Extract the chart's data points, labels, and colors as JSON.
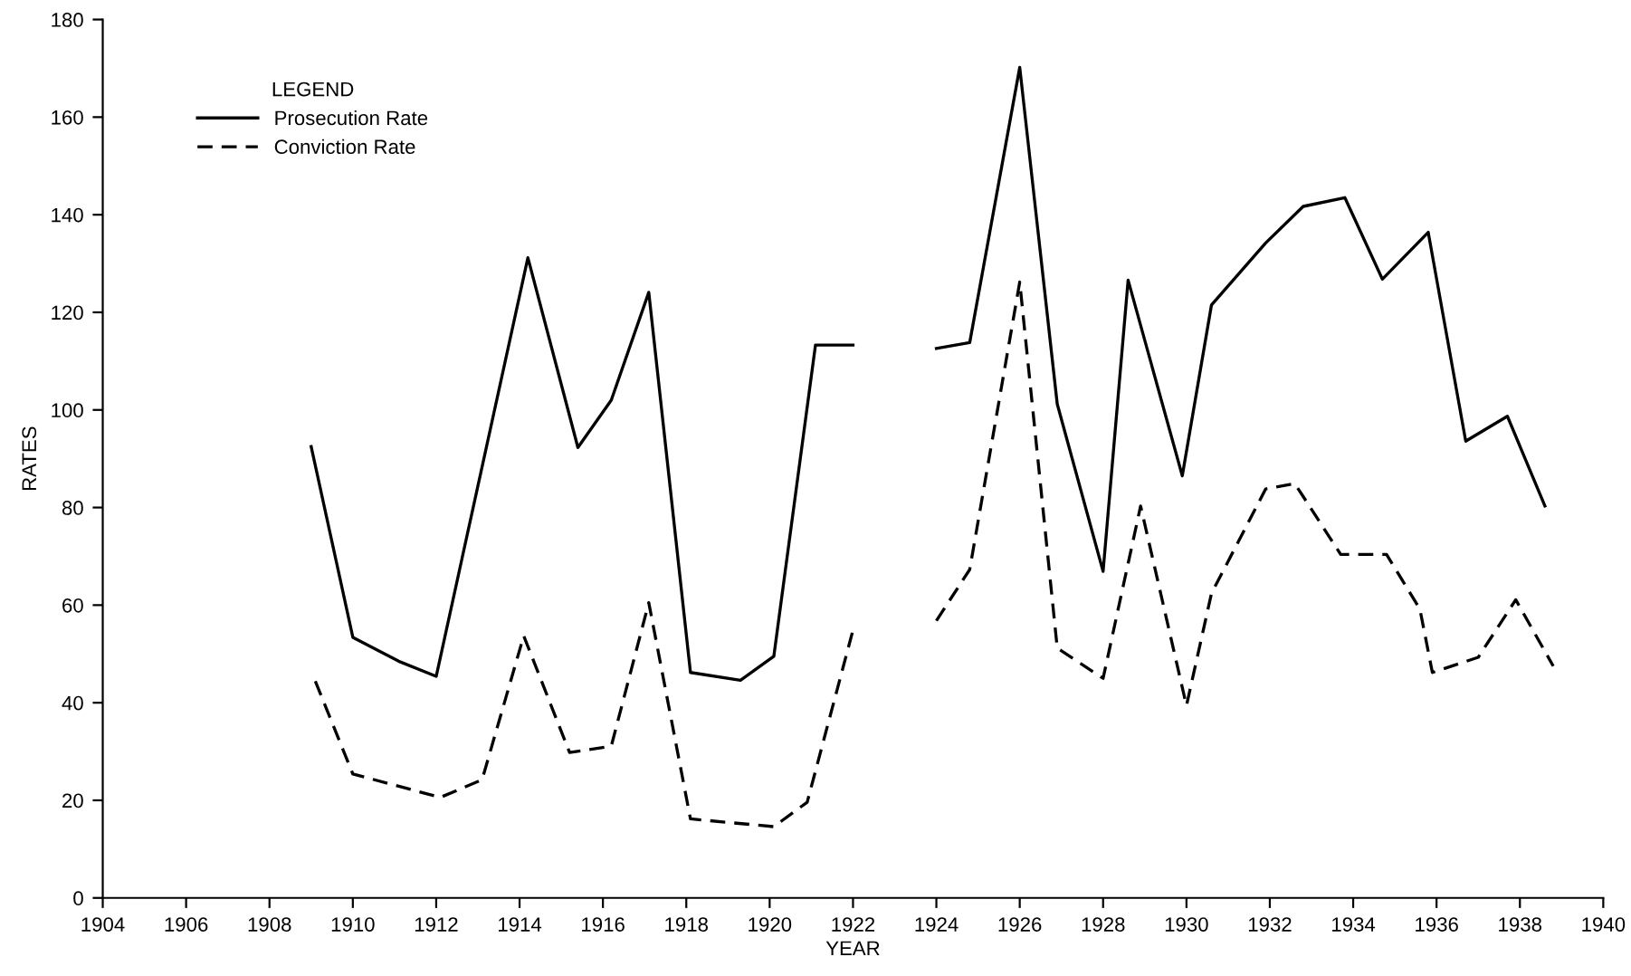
{
  "chart_data": {
    "type": "line",
    "xlabel": "YEAR",
    "ylabel": "RATES",
    "legend_title": "LEGEND",
    "legend": "top left",
    "grid": false,
    "marker": "none",
    "xlim": [
      1904,
      1940
    ],
    "xticks": [
      1904,
      1906,
      1908,
      1910,
      1912,
      1914,
      1916,
      1918,
      1920,
      1922,
      1924,
      1926,
      1928,
      1930,
      1932,
      1934,
      1936,
      1938,
      1940
    ],
    "ylim": [
      0,
      180
    ],
    "yticks": [
      0,
      20,
      40,
      60,
      80,
      100,
      120,
      140,
      160,
      180
    ],
    "series": [
      {
        "name": "Prosecution Rate",
        "color": "#000000",
        "line_style": "solid",
        "x": [
          1909.0,
          1910.0,
          1911.1,
          1912.0,
          1914.2,
          1915.4,
          1916.2,
          1917.1,
          1918.1,
          1919.3,
          1920.1,
          1921.1,
          1922.0,
          1923.0,
          1924.0,
          1924.8,
          1926.0,
          1926.9,
          1928.0,
          1928.6,
          1929.9,
          1930.6,
          1931.9,
          1932.8,
          1933.8,
          1934.7,
          1935.8,
          1936.7,
          1937.7,
          1938.6
        ],
        "values": [
          92.5,
          53.4,
          48.5,
          45.4,
          131.2,
          92.3,
          102,
          124.1,
          46.2,
          44.6,
          49.5,
          113.3,
          113.3,
          null,
          112.6,
          113.8,
          170.2,
          101.2,
          66.9,
          126.6,
          86.5,
          121.5,
          134.2,
          141.7,
          143.5,
          126.8,
          136.4,
          93.6,
          98.7,
          80.3
        ]
      },
      {
        "name": "Conviction Rate",
        "color": "#000000",
        "line_style": "dashed",
        "x": [
          1909.1,
          1910.0,
          1912.1,
          1913.1,
          1914.1,
          1915.2,
          1916.2,
          1917.1,
          1918.1,
          1920.1,
          1920.9,
          1922.0,
          1923.0,
          1924.0,
          1924.8,
          1926.0,
          1926.9,
          1928.0,
          1928.9,
          1930.0,
          1930.6,
          1931.9,
          1932.6,
          1933.7,
          1934.8,
          1935.6,
          1935.9,
          1937.0,
          1937.9,
          1938.8
        ],
        "values": [
          44.4,
          25.4,
          20.6,
          24.2,
          53.7,
          29.8,
          31.1,
          60.5,
          16.2,
          14.6,
          19.6,
          54.9,
          null,
          56.8,
          67.3,
          126.2,
          51.2,
          45,
          80.3,
          39.4,
          62.4,
          83.8,
          84.9,
          70.4,
          70.4,
          59.2,
          46.2,
          49.3,
          61.1,
          47.5
        ]
      }
    ]
  }
}
